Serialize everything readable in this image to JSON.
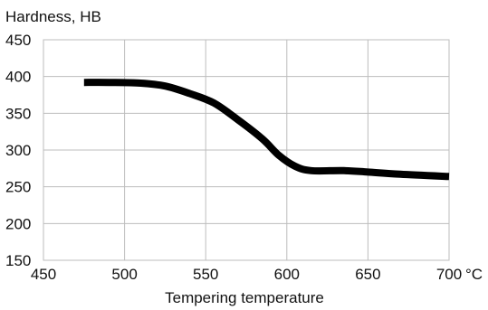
{
  "chart_data": {
    "type": "line",
    "title": "",
    "ylabel": "Hardness, HB",
    "xlabel": "Tempering temperature",
    "x_unit": "°C",
    "xlim": [
      450,
      700
    ],
    "ylim": [
      150,
      450
    ],
    "x_ticks": [
      450,
      500,
      550,
      600,
      650,
      700
    ],
    "y_ticks": [
      150,
      200,
      250,
      300,
      350,
      400,
      450
    ],
    "grid": true,
    "legend": "none",
    "series": [
      {
        "line_color": "#000000",
        "x": [
          475,
          490,
          510,
          525,
          540,
          555,
          570,
          585,
          595,
          605,
          615,
          635,
          650,
          670,
          700
        ],
        "y": [
          392,
          392,
          391,
          387,
          377,
          364,
          341,
          315,
          293,
          278,
          272,
          272,
          270,
          267,
          264
        ]
      }
    ]
  }
}
